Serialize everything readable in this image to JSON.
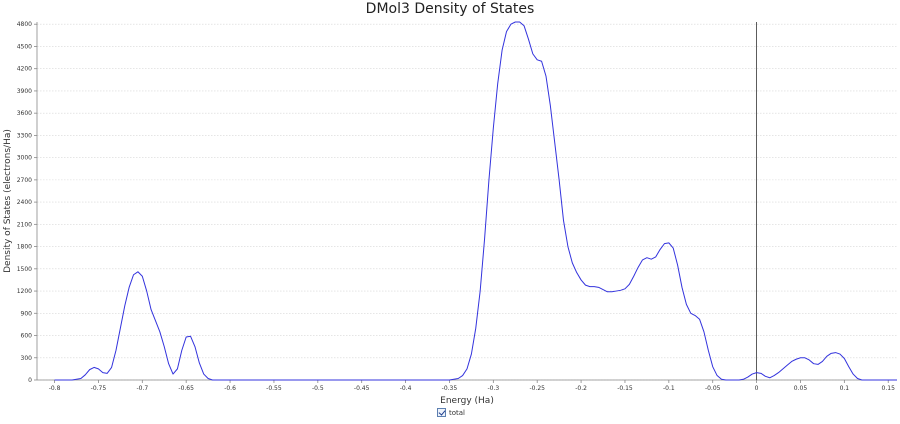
{
  "chart_data": {
    "type": "line",
    "title": "DMol3 Density of States",
    "xlabel": "Energy (Ha)",
    "ylabel": "Density of States (electrons/Ha)",
    "xlim": [
      -0.82,
      0.16
    ],
    "ylim": [
      0,
      4830
    ],
    "x_ticks": [
      -0.8,
      -0.75,
      -0.7,
      -0.65,
      -0.6,
      -0.55,
      -0.5,
      -0.45,
      -0.4,
      -0.35,
      -0.3,
      -0.25,
      -0.2,
      -0.15,
      -0.1,
      -0.05,
      0,
      0.05,
      0.1,
      0.15
    ],
    "x_tick_labels": [
      "-0.8",
      "-0.75",
      "-0.7",
      "-0.65",
      "-0.6",
      "-0.55",
      "-0.5",
      "-0.45",
      "-0.4",
      "-0.35",
      "-0.3",
      "-0.25",
      "-0.2",
      "-0.15",
      "-0.1",
      "-0.05",
      "0",
      "0.05",
      "0.1",
      "0.15"
    ],
    "y_ticks": [
      0,
      300,
      600,
      900,
      1200,
      1500,
      1800,
      2100,
      2400,
      2700,
      3000,
      3300,
      3600,
      3900,
      4200,
      4500,
      4800
    ],
    "y_tick_labels": [
      "0",
      "300",
      "600",
      "900",
      "1200",
      "1500",
      "1800",
      "2100",
      "2400",
      "2700",
      "3000",
      "3300",
      "3600",
      "3900",
      "4200",
      "4500",
      "4800"
    ],
    "grid": true,
    "vertical_marker_x": 0,
    "legend_position": "bottom-center",
    "series": [
      {
        "name": "total",
        "color": "#3333dd",
        "points": [
          [
            -0.8,
            0
          ],
          [
            -0.78,
            0
          ],
          [
            -0.77,
            20
          ],
          [
            -0.765,
            70
          ],
          [
            -0.76,
            140
          ],
          [
            -0.755,
            170
          ],
          [
            -0.75,
            150
          ],
          [
            -0.745,
            100
          ],
          [
            -0.74,
            90
          ],
          [
            -0.735,
            170
          ],
          [
            -0.73,
            400
          ],
          [
            -0.725,
            700
          ],
          [
            -0.72,
            1000
          ],
          [
            -0.715,
            1250
          ],
          [
            -0.71,
            1420
          ],
          [
            -0.705,
            1460
          ],
          [
            -0.7,
            1400
          ],
          [
            -0.695,
            1200
          ],
          [
            -0.69,
            950
          ],
          [
            -0.685,
            800
          ],
          [
            -0.68,
            650
          ],
          [
            -0.675,
            450
          ],
          [
            -0.67,
            220
          ],
          [
            -0.665,
            80
          ],
          [
            -0.66,
            150
          ],
          [
            -0.655,
            400
          ],
          [
            -0.65,
            580
          ],
          [
            -0.645,
            590
          ],
          [
            -0.64,
            450
          ],
          [
            -0.635,
            230
          ],
          [
            -0.63,
            80
          ],
          [
            -0.625,
            20
          ],
          [
            -0.62,
            0
          ],
          [
            -0.35,
            0
          ],
          [
            -0.34,
            20
          ],
          [
            -0.335,
            60
          ],
          [
            -0.33,
            150
          ],
          [
            -0.325,
            350
          ],
          [
            -0.32,
            700
          ],
          [
            -0.315,
            1200
          ],
          [
            -0.31,
            1900
          ],
          [
            -0.305,
            2700
          ],
          [
            -0.3,
            3400
          ],
          [
            -0.295,
            4000
          ],
          [
            -0.29,
            4450
          ],
          [
            -0.285,
            4700
          ],
          [
            -0.28,
            4800
          ],
          [
            -0.275,
            4830
          ],
          [
            -0.27,
            4830
          ],
          [
            -0.265,
            4780
          ],
          [
            -0.26,
            4600
          ],
          [
            -0.255,
            4400
          ],
          [
            -0.25,
            4320
          ],
          [
            -0.245,
            4300
          ],
          [
            -0.24,
            4100
          ],
          [
            -0.235,
            3700
          ],
          [
            -0.23,
            3200
          ],
          [
            -0.225,
            2700
          ],
          [
            -0.22,
            2150
          ],
          [
            -0.215,
            1800
          ],
          [
            -0.21,
            1580
          ],
          [
            -0.205,
            1450
          ],
          [
            -0.2,
            1350
          ],
          [
            -0.195,
            1280
          ],
          [
            -0.19,
            1260
          ],
          [
            -0.185,
            1260
          ],
          [
            -0.18,
            1250
          ],
          [
            -0.175,
            1220
          ],
          [
            -0.17,
            1190
          ],
          [
            -0.165,
            1190
          ],
          [
            -0.16,
            1200
          ],
          [
            -0.155,
            1210
          ],
          [
            -0.15,
            1230
          ],
          [
            -0.145,
            1290
          ],
          [
            -0.14,
            1400
          ],
          [
            -0.135,
            1520
          ],
          [
            -0.13,
            1620
          ],
          [
            -0.125,
            1650
          ],
          [
            -0.12,
            1630
          ],
          [
            -0.115,
            1660
          ],
          [
            -0.11,
            1760
          ],
          [
            -0.105,
            1840
          ],
          [
            -0.1,
            1850
          ],
          [
            -0.095,
            1780
          ],
          [
            -0.09,
            1550
          ],
          [
            -0.085,
            1250
          ],
          [
            -0.08,
            1020
          ],
          [
            -0.075,
            900
          ],
          [
            -0.07,
            870
          ],
          [
            -0.065,
            820
          ],
          [
            -0.06,
            650
          ],
          [
            -0.055,
            400
          ],
          [
            -0.05,
            180
          ],
          [
            -0.045,
            60
          ],
          [
            -0.04,
            10
          ],
          [
            -0.035,
            0
          ],
          [
            -0.02,
            0
          ],
          [
            -0.015,
            10
          ],
          [
            -0.01,
            40
          ],
          [
            -0.005,
            80
          ],
          [
            0,
            100
          ],
          [
            0.005,
            90
          ],
          [
            0.01,
            50
          ],
          [
            0.015,
            30
          ],
          [
            0.02,
            60
          ],
          [
            0.025,
            100
          ],
          [
            0.03,
            150
          ],
          [
            0.035,
            200
          ],
          [
            0.04,
            250
          ],
          [
            0.045,
            280
          ],
          [
            0.05,
            300
          ],
          [
            0.055,
            300
          ],
          [
            0.06,
            270
          ],
          [
            0.065,
            220
          ],
          [
            0.07,
            210
          ],
          [
            0.075,
            250
          ],
          [
            0.08,
            320
          ],
          [
            0.085,
            360
          ],
          [
            0.09,
            370
          ],
          [
            0.095,
            350
          ],
          [
            0.1,
            290
          ],
          [
            0.105,
            180
          ],
          [
            0.11,
            80
          ],
          [
            0.115,
            20
          ],
          [
            0.12,
            0
          ],
          [
            0.16,
            0
          ]
        ]
      }
    ]
  },
  "legend": {
    "label": "total"
  }
}
